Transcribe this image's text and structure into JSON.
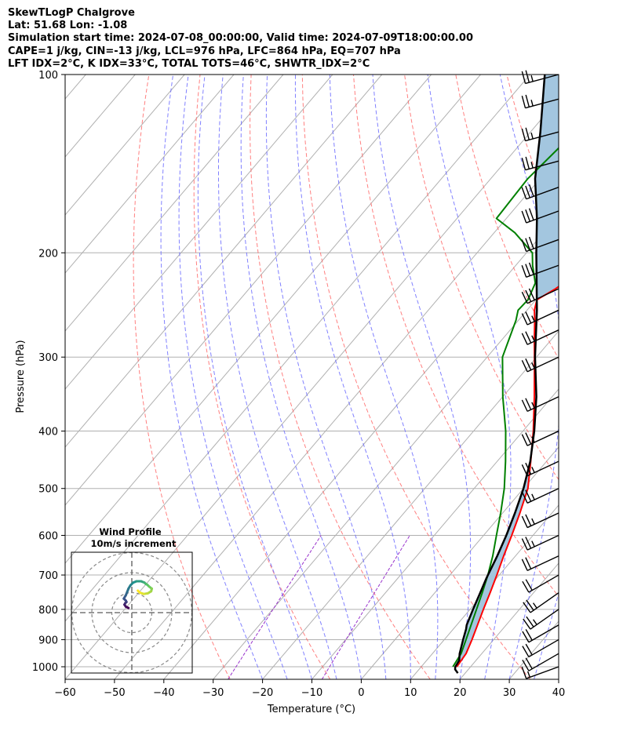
{
  "header": {
    "line1": "SkewTLogP Chalgrove",
    "line2": "Lat: 51.68   Lon: -1.08",
    "line3": "Simulation start time: 2024-07-08_00:00:00, Valid time: 2024-07-09T18:00:00.00",
    "line4": "CAPE=1 j/kg, CIN=-13 j/kg, LCL=976 hPa, LFC=864 hPa, EQ=707 hPa",
    "line5": "LFT IDX=2°C, K IDX=33°C, TOTAL TOTS=46°C, SHWTR_IDX=2°C"
  },
  "colors": {
    "temperature": "#ff0000",
    "dewpoint": "#008000",
    "parcel": "#000000",
    "cape_fill": "#a3c6df",
    "dry_adiabat": "#ff6a6a",
    "moist_adiabat": "#6b6bff",
    "mixing_ratio": "#9933cc",
    "isotherm": "#b0b0b0",
    "isobar": "#b0b0b0"
  },
  "chart_data": {
    "type": "line",
    "title": "",
    "xlabel": "Temperature (°C)",
    "ylabel": "Pressure (hPa)",
    "xlim": [
      -60,
      40
    ],
    "ylim": [
      1050,
      100
    ],
    "yscale": "log",
    "x_ticks": [
      "−60",
      "−50",
      "−40",
      "−30",
      "−20",
      "−10",
      "0",
      "10",
      "20",
      "30",
      "40"
    ],
    "y_ticks": [
      "100",
      "200",
      "300",
      "400",
      "500",
      "600",
      "700",
      "800",
      "900",
      "1000"
    ],
    "grid": true,
    "series": [
      {
        "name": "",
        "role": "temperature",
        "p": [
          1000,
          950,
          900,
          850,
          800,
          750,
          700,
          650,
          600,
          550,
          500,
          450,
          400,
          350,
          300,
          280,
          260,
          250,
          240,
          230,
          210,
          190,
          175,
          160,
          145,
          130,
          120,
          110,
          100
        ],
        "t": [
          17.2,
          16.8,
          15.6,
          14.2,
          12.7,
          11.2,
          9.5,
          7.6,
          5.7,
          3.5,
          0.9,
          -3.2,
          -7.9,
          -13.6,
          -20.4,
          -23.5,
          -26.7,
          -28.5,
          -29.8,
          -27.9,
          -25.1,
          -21.5,
          -19.0,
          -17.3,
          -16.2,
          -15.4,
          -15.2,
          -14.5,
          -13.0
        ]
      },
      {
        "name": "",
        "role": "dewpoint",
        "p": [
          1000,
          950,
          900,
          850,
          800,
          750,
          700,
          650,
          600,
          550,
          500,
          450,
          400,
          350,
          300,
          260,
          250,
          240,
          225,
          210,
          200,
          185,
          175,
          150,
          125,
          100
        ],
        "t": [
          16.4,
          15.8,
          14.4,
          12.9,
          11.3,
          9.6,
          7.7,
          5.4,
          2.6,
          -0.4,
          -3.9,
          -8.3,
          -13.5,
          -20.0,
          -26.9,
          -30.5,
          -31.8,
          -31.6,
          -33.0,
          -36.6,
          -38.8,
          -45.8,
          -52.0,
          -52.5,
          -51.0,
          -49.5
        ]
      },
      {
        "name": "",
        "role": "parcel",
        "p": [
          1025,
          1010,
          1000,
          976,
          950,
          900,
          864,
          850,
          800,
          750,
          707,
          650,
          600,
          550,
          500,
          450,
          400,
          350,
          300,
          250,
          200,
          175,
          150,
          125,
          100
        ],
        "t": [
          18.5,
          17.3,
          16.9,
          16.6,
          15.5,
          13.8,
          12.6,
          12.0,
          10.6,
          9.2,
          7.9,
          6.3,
          4.6,
          2.5,
          0.0,
          -3.3,
          -7.7,
          -13.2,
          -20.3,
          -28.0,
          -38.0,
          -43.8,
          -51.0,
          -58.0,
          -67.0
        ]
      }
    ],
    "cape_fill": {
      "p": [
        1000,
        950,
        900,
        850,
        800,
        750,
        700,
        650,
        600,
        550,
        500,
        450,
        400,
        350,
        300,
        280,
        260,
        250,
        240,
        230,
        210,
        190,
        175,
        160,
        145,
        130,
        120,
        110,
        100
      ]
    },
    "wind_barbs": {
      "p": [
        1000,
        950,
        900,
        850,
        800,
        750,
        700,
        650,
        600,
        550,
        500,
        450,
        400,
        350,
        300,
        270,
        250,
        230,
        210,
        190,
        170,
        155,
        140,
        125,
        110,
        100
      ],
      "speed_kt": [
        15,
        20,
        20,
        20,
        25,
        25,
        20,
        20,
        25,
        25,
        25,
        25,
        25,
        25,
        25,
        25,
        25,
        30,
        30,
        30,
        30,
        30,
        25,
        25,
        25,
        25
      ],
      "direction_deg": [
        250,
        240,
        240,
        240,
        235,
        235,
        240,
        245,
        245,
        245,
        245,
        245,
        245,
        245,
        245,
        245,
        245,
        245,
        250,
        250,
        250,
        250,
        255,
        255,
        255,
        255
      ]
    },
    "inset": {
      "title_line1": "Wind Profile",
      "title_line2": "10m/s increment",
      "u": [
        -0.5,
        -0.9,
        -1.1,
        -1.0,
        -0.8,
        -0.9,
        -1.2,
        -0.9,
        -0.7,
        -0.5,
        -0.2,
        0.2,
        0.7,
        1.4,
        1.9,
        2.1,
        2.3,
        2.6,
        3.0,
        2.9,
        2.4,
        1.8,
        1.2,
        0.9
      ],
      "v": [
        0.7,
        0.9,
        1.2,
        1.4,
        1.6,
        1.8,
        2.1,
        2.6,
        3.1,
        3.6,
        4.1,
        4.5,
        4.7,
        4.7,
        4.5,
        4.3,
        4.2,
        3.9,
        3.6,
        3.2,
        2.9,
        2.8,
        3.0,
        3.3
      ],
      "ring_spacing_ms": 10
    }
  }
}
